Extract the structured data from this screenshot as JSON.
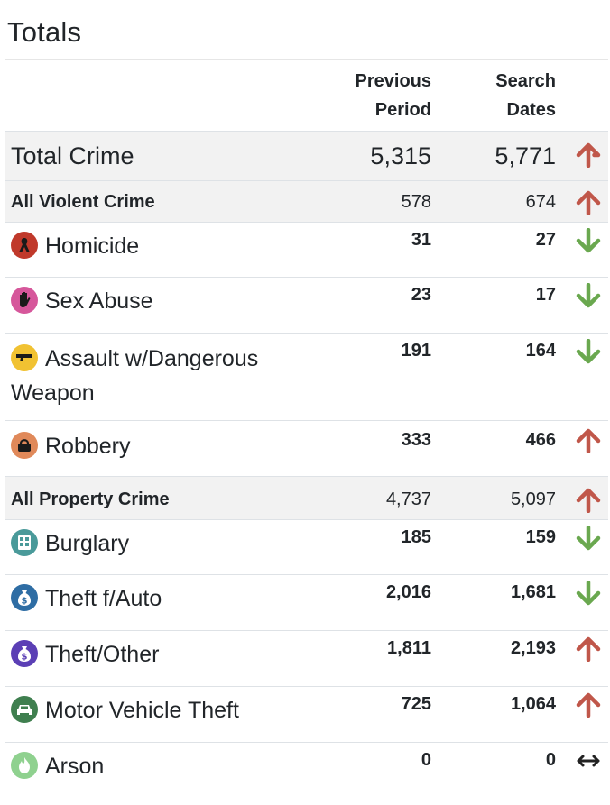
{
  "page_title": "Totals",
  "header": {
    "previous_line1": "Previous",
    "previous_line2": "Period",
    "search_line1": "Search",
    "search_line2": "Dates"
  },
  "rows": [
    {
      "label": "Total Crime",
      "previous": "5,315",
      "search": "5,771",
      "trend": "up",
      "icon": ""
    },
    {
      "label": "All Violent Crime",
      "previous": "578",
      "search": "674",
      "trend": "up",
      "icon": ""
    },
    {
      "label": "Homicide",
      "previous": "31",
      "search": "27",
      "trend": "down",
      "icon": "ribbon-icon"
    },
    {
      "label": "Sex Abuse",
      "previous": "23",
      "search": "17",
      "trend": "down",
      "icon": "hand-stop-icon"
    },
    {
      "label_line1": "Assault w/Dangerous",
      "label_line2": "Weapon",
      "previous": "191",
      "search": "164",
      "trend": "down",
      "icon": "gun-icon"
    },
    {
      "label": "Robbery",
      "previous": "333",
      "search": "466",
      "trend": "up",
      "icon": "handbag-icon"
    },
    {
      "label": "All Property Crime",
      "previous": "4,737",
      "search": "5,097",
      "trend": "up",
      "icon": ""
    },
    {
      "label": "Burglary",
      "previous": "185",
      "search": "159",
      "trend": "down",
      "icon": "building-icon"
    },
    {
      "label": "Theft f/Auto",
      "previous": "2,016",
      "search": "1,681",
      "trend": "down",
      "icon": "money-bag-icon"
    },
    {
      "label": "Theft/Other",
      "previous": "1,811",
      "search": "2,193",
      "trend": "up",
      "icon": "money-bag-icon"
    },
    {
      "label": "Motor Vehicle Theft",
      "previous": "725",
      "search": "1,064",
      "trend": "up",
      "icon": "car-icon"
    },
    {
      "label": "Arson",
      "previous": "0",
      "search": "0",
      "trend": "same",
      "icon": "flame-icon"
    }
  ],
  "colors": {
    "up": "#c0574a",
    "down": "#6aa84f",
    "same": "#222222",
    "homicide": "#c0392b",
    "sex_abuse": "#d6579b",
    "assault": "#f1c232",
    "robbery": "#e0895a",
    "burglary": "#4a9a9a",
    "theft_auto": "#2e6da4",
    "theft_other": "#5b3fb5",
    "motor_vehicle": "#3f7f4f",
    "arson": "#8fd18f"
  }
}
